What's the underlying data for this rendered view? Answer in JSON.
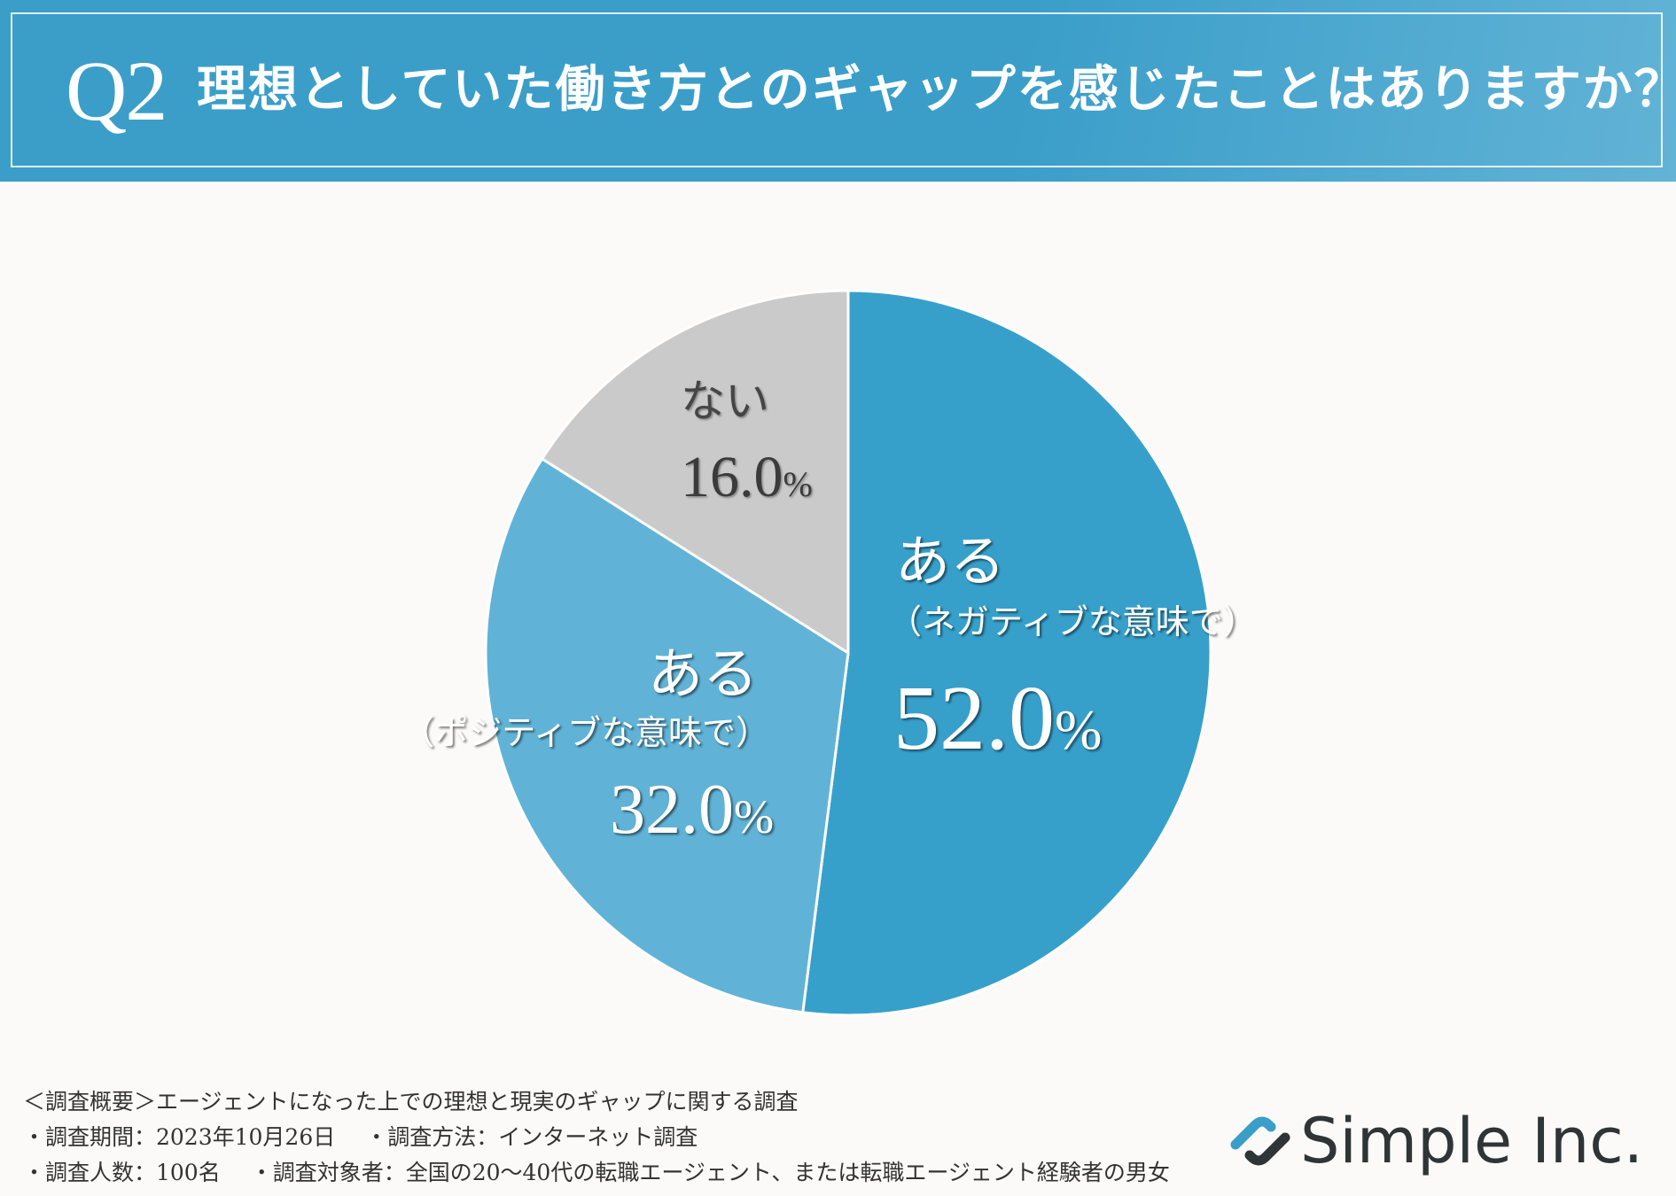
{
  "header": {
    "question_label": "Q2",
    "question_text": "理想としていた働き方とのギャップを感じたことはありますか？"
  },
  "chart_data": {
    "type": "pie",
    "title": "理想としていた働き方とのギャップを感じたことはありますか？",
    "slices": [
      {
        "label": "ある",
        "sublabel": "（ネガティブな意味で）",
        "value": 52.0,
        "value_text": "52.0",
        "unit": "%",
        "color": "#36a0cb"
      },
      {
        "label": "ある",
        "sublabel": "（ポジティブな意味で）",
        "value": 32.0,
        "value_text": "32.0",
        "unit": "%",
        "color": "#60b3d7"
      },
      {
        "label": "ない",
        "sublabel": "",
        "value": 16.0,
        "value_text": "16.0",
        "unit": "%",
        "color": "#cacaca"
      }
    ]
  },
  "footer": {
    "summary": "＜調査概要＞エージェントになった上での理想と現実のギャップに関する調査",
    "period": "・調査期間：2023年10月26日",
    "method": "・調査方法：インターネット調査",
    "respondents": "・調査人数：100名",
    "target": "・調査対象者：全国の20〜40代の転職エージェント、または転職エージェント経験者の男女"
  },
  "logo": {
    "company": "Simple Inc.",
    "colors": {
      "dark": "#2f3437",
      "accent": "#3a9ec9"
    }
  }
}
